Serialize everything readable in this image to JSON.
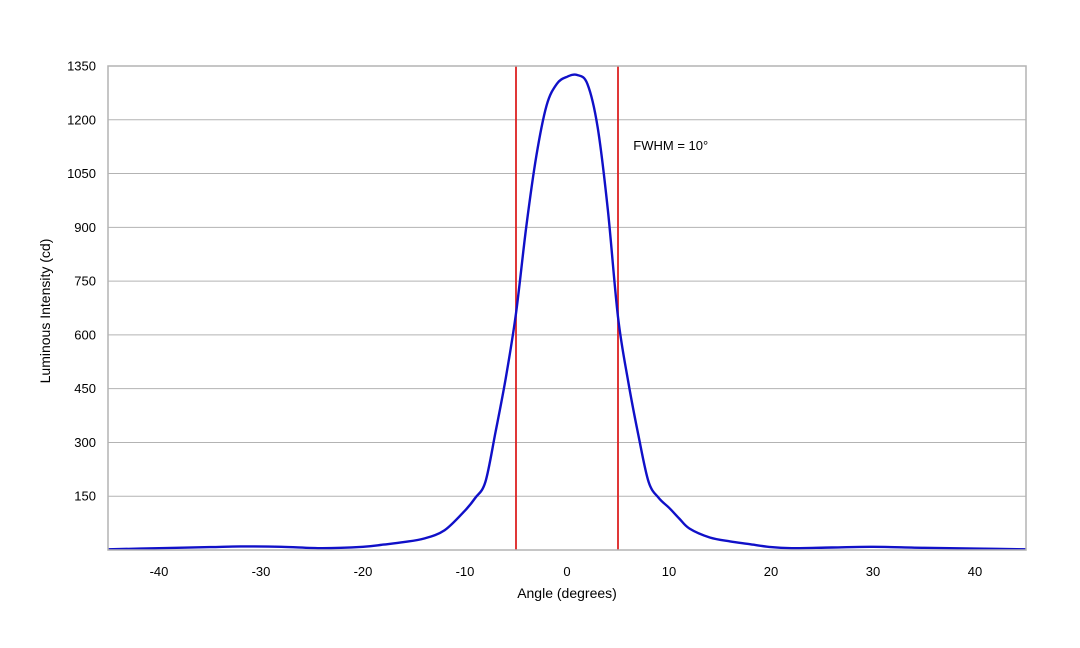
{
  "chart_data": {
    "type": "line",
    "title": "",
    "xlabel": "Angle (degrees)",
    "ylabel": "Luminous Intensity (cd)",
    "xlim": [
      -45,
      45
    ],
    "ylim": [
      0,
      1350
    ],
    "x_ticks": [
      -40,
      -30,
      -20,
      -10,
      0,
      10,
      20,
      30,
      40
    ],
    "y_ticks": [
      150,
      300,
      450,
      600,
      750,
      900,
      1050,
      1200,
      1350
    ],
    "grid": "horizontal",
    "series": [
      {
        "color": "#1010c8",
        "x": [
          -45,
          -40,
          -35,
          -32,
          -28,
          -24,
          -20,
          -18,
          -16,
          -14,
          -12,
          -10,
          -9,
          -8,
          -7,
          -6,
          -5,
          -4,
          -3,
          -2,
          -1,
          0,
          1,
          2,
          3,
          4,
          5,
          6,
          7,
          8,
          9,
          10,
          11,
          12,
          14,
          16,
          18,
          20,
          22,
          26,
          30,
          35,
          40,
          45
        ],
        "y": [
          2,
          5,
          8,
          10,
          9,
          5,
          9,
          15,
          22,
          32,
          55,
          110,
          145,
          190,
          330,
          480,
          660,
          900,
          1100,
          1240,
          1300,
          1320,
          1325,
          1300,
          1180,
          950,
          650,
          470,
          320,
          190,
          145,
          118,
          88,
          60,
          35,
          24,
          16,
          8,
          5,
          7,
          9,
          6,
          4,
          2
        ]
      }
    ],
    "reference_lines": [
      {
        "x": -5,
        "color": "#dd2222"
      },
      {
        "x": 5,
        "color": "#dd2222"
      }
    ],
    "annotations": [
      {
        "text": "FWHM = 10°",
        "x": 6.5,
        "y": 1130
      }
    ]
  }
}
